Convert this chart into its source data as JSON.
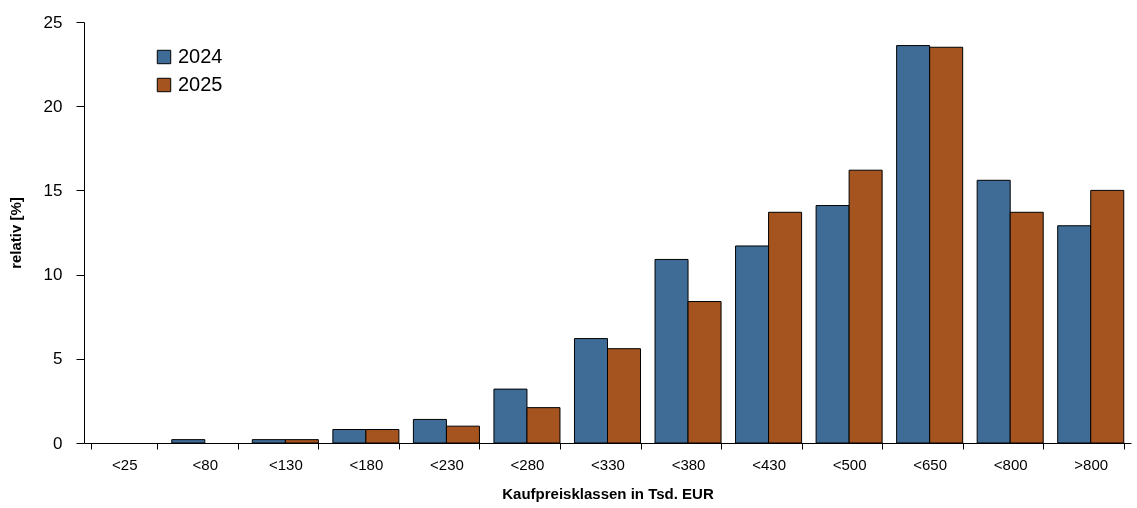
{
  "chart_data": {
    "type": "bar",
    "xlabel": "Kaufpreisklassen in Tsd. EUR",
    "ylabel": "relativ [%]",
    "categories": [
      "<25",
      "<80",
      "<130",
      "<180",
      "<230",
      "<280",
      "<330",
      "<380",
      "<430",
      "<500",
      "<650",
      "<800",
      ">800"
    ],
    "series": [
      {
        "name": "2024",
        "color": "#3f6c96",
        "values": [
          0,
          0.2,
          0.2,
          0.8,
          1.4,
          3.2,
          6.2,
          10.9,
          11.7,
          14.1,
          23.6,
          15.6,
          12.9
        ]
      },
      {
        "name": "2025",
        "color": "#a5541f",
        "values": [
          0,
          0,
          0.2,
          0.8,
          1.0,
          2.1,
          5.6,
          8.4,
          13.7,
          16.2,
          23.5,
          13.7,
          15.0
        ]
      }
    ],
    "ylim": [
      0,
      25
    ],
    "yticks": [
      0,
      5,
      10,
      15,
      20,
      25
    ],
    "grid": false,
    "legend": "top left"
  }
}
